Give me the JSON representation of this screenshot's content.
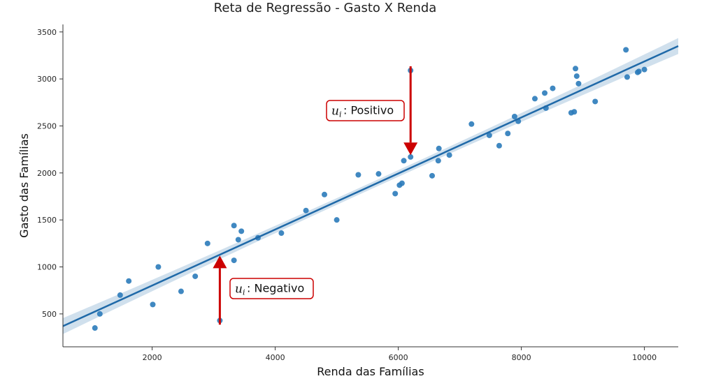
{
  "chart_data": {
    "type": "scatter",
    "title": "Reta de Regressão - Gasto X Renda",
    "xlabel": "Renda das Famílias",
    "ylabel": "Gasto das Famílias",
    "xlim": [
      550,
      10550
    ],
    "ylim": [
      150,
      3580
    ],
    "x_ticks": [
      2000,
      4000,
      6000,
      8000,
      10000
    ],
    "y_ticks": [
      500,
      1000,
      1500,
      2000,
      2500,
      3000,
      3500
    ],
    "grid": false,
    "colors": {
      "points": "#2b7bba",
      "line": "#1f69a8",
      "band": "#c8daea",
      "arrow": "#cc0000",
      "annotation_border": "#cc0000"
    },
    "points": [
      {
        "x": 1070,
        "y": 350
      },
      {
        "x": 1150,
        "y": 500
      },
      {
        "x": 1480,
        "y": 700
      },
      {
        "x": 1620,
        "y": 850
      },
      {
        "x": 2010,
        "y": 600
      },
      {
        "x": 2100,
        "y": 1000
      },
      {
        "x": 2470,
        "y": 740
      },
      {
        "x": 2700,
        "y": 900
      },
      {
        "x": 2900,
        "y": 1250
      },
      {
        "x": 3100,
        "y": 430
      },
      {
        "x": 3330,
        "y": 1070
      },
      {
        "x": 3330,
        "y": 1440
      },
      {
        "x": 3400,
        "y": 1290
      },
      {
        "x": 3450,
        "y": 1380
      },
      {
        "x": 3720,
        "y": 1310
      },
      {
        "x": 4100,
        "y": 1360
      },
      {
        "x": 4500,
        "y": 1600
      },
      {
        "x": 4800,
        "y": 1770
      },
      {
        "x": 5000,
        "y": 1500
      },
      {
        "x": 5350,
        "y": 1980
      },
      {
        "x": 5680,
        "y": 1990
      },
      {
        "x": 5950,
        "y": 1780
      },
      {
        "x": 6020,
        "y": 1870
      },
      {
        "x": 6060,
        "y": 1890
      },
      {
        "x": 6090,
        "y": 2130
      },
      {
        "x": 6200,
        "y": 2170
      },
      {
        "x": 6200,
        "y": 3090
      },
      {
        "x": 6550,
        "y": 1970
      },
      {
        "x": 6650,
        "y": 2130
      },
      {
        "x": 6660,
        "y": 2260
      },
      {
        "x": 6830,
        "y": 2190
      },
      {
        "x": 7190,
        "y": 2520
      },
      {
        "x": 7480,
        "y": 2400
      },
      {
        "x": 7640,
        "y": 2290
      },
      {
        "x": 7780,
        "y": 2420
      },
      {
        "x": 7890,
        "y": 2600
      },
      {
        "x": 7950,
        "y": 2550
      },
      {
        "x": 8220,
        "y": 2790
      },
      {
        "x": 8380,
        "y": 2850
      },
      {
        "x": 8400,
        "y": 2690
      },
      {
        "x": 8510,
        "y": 2900
      },
      {
        "x": 8810,
        "y": 2640
      },
      {
        "x": 8860,
        "y": 2650
      },
      {
        "x": 8880,
        "y": 3110
      },
      {
        "x": 8900,
        "y": 3030
      },
      {
        "x": 8930,
        "y": 2950
      },
      {
        "x": 9200,
        "y": 2760
      },
      {
        "x": 9700,
        "y": 3310
      },
      {
        "x": 9720,
        "y": 3020
      },
      {
        "x": 9890,
        "y": 3070
      },
      {
        "x": 9910,
        "y": 3080
      },
      {
        "x": 10000,
        "y": 3100
      }
    ],
    "regression_line": {
      "x": [
        550,
        10550
      ],
      "y": [
        370,
        3350
      ],
      "ci_halfwidth_ends": 85,
      "ci_halfwidth_center": 35
    },
    "annotations": [
      {
        "var": "u",
        "sub": "i",
        "text": ": Positivo",
        "point": {
          "x": 6200,
          "y": 3090
        },
        "target": {
          "x": 6200,
          "y": 2190
        }
      },
      {
        "var": "u",
        "sub": "i",
        "text": ": Negativo",
        "point": {
          "x": 3100,
          "y": 430
        },
        "target": {
          "x": 3100,
          "y": 1120
        }
      }
    ]
  }
}
